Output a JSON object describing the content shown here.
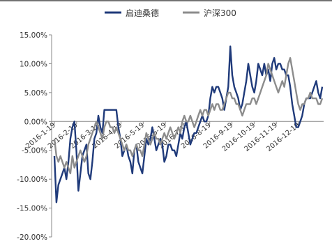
{
  "chart_data": {
    "type": "line",
    "title": "",
    "xlabel": "",
    "ylabel": "",
    "ylim": [
      -0.2,
      0.15
    ],
    "y_tick_labels": [
      "15.00%",
      "10.00%",
      "5.00%",
      "0.00%",
      "-5.00%",
      "-10.00%",
      "-15.00%",
      "-20.00%"
    ],
    "y_ticks": [
      0.15,
      0.1,
      0.05,
      0.0,
      -0.05,
      -0.1,
      -0.15,
      -0.2
    ],
    "x_tick_labels": [
      "2016-1-19",
      "2016-2-19",
      "2016-3-19",
      "2016-4-19",
      "2016-5-19",
      "2016-6-19",
      "2016-7-19",
      "2016-8-19",
      "2016-9-19",
      "2016-10-19",
      "2016-11-19",
      "2016-12-19"
    ],
    "grid": false,
    "legend_position": "top-center",
    "series": [
      {
        "name": "启迪桑德",
        "color": "#1f3a7a",
        "values": [
          -0.06,
          -0.14,
          -0.11,
          -0.1,
          -0.09,
          -0.08,
          -0.1,
          -0.07,
          -0.03,
          -0.01,
          0.0,
          -0.05,
          -0.12,
          -0.09,
          -0.06,
          -0.05,
          -0.04,
          -0.09,
          -0.1,
          -0.07,
          -0.03,
          -0.02,
          0.01,
          -0.01,
          -0.02,
          0.02,
          0.02,
          0.02,
          0.02,
          0.02,
          0.02,
          0.02,
          -0.01,
          -0.03,
          -0.06,
          -0.05,
          -0.04,
          -0.06,
          -0.07,
          -0.09,
          -0.05,
          -0.04,
          -0.07,
          -0.08,
          -0.09,
          -0.06,
          -0.03,
          -0.04,
          -0.03,
          -0.01,
          -0.03,
          -0.05,
          -0.04,
          -0.03,
          -0.04,
          -0.07,
          -0.06,
          -0.04,
          -0.04,
          -0.05,
          -0.05,
          -0.06,
          -0.04,
          -0.02,
          -0.03,
          -0.01,
          0.0,
          -0.02,
          -0.04,
          -0.03,
          -0.02,
          -0.02,
          -0.01,
          0.0,
          0.01,
          0.0,
          0.0,
          0.01,
          0.04,
          0.06,
          0.05,
          0.06,
          0.06,
          0.05,
          0.04,
          0.02,
          0.04,
          0.06,
          0.13,
          0.08,
          0.06,
          0.05,
          0.04,
          0.02,
          0.03,
          0.05,
          0.07,
          0.1,
          0.08,
          0.06,
          0.05,
          0.07,
          0.1,
          0.09,
          0.08,
          0.1,
          0.08,
          0.09,
          0.07,
          0.1,
          0.11,
          0.09,
          0.1,
          0.1,
          0.09,
          0.09,
          0.08,
          0.08,
          0.06,
          0.03,
          0.01,
          -0.01,
          -0.01,
          0.0,
          0.01,
          0.03,
          0.04,
          0.04,
          0.04,
          0.05,
          0.06,
          0.07,
          0.05,
          0.04,
          0.06
        ]
      },
      {
        "name": "沪深300",
        "color": "#8c8c8c",
        "values": [
          -0.03,
          -0.06,
          -0.07,
          -0.06,
          -0.07,
          -0.08,
          -0.07,
          -0.08,
          -0.09,
          -0.06,
          -0.08,
          -0.07,
          -0.06,
          -0.05,
          -0.06,
          -0.07,
          -0.06,
          -0.04,
          -0.03,
          -0.02,
          -0.01,
          0.0,
          -0.01,
          -0.02,
          -0.03,
          -0.01,
          0.0,
          0.0,
          -0.01,
          -0.01,
          -0.02,
          -0.01,
          -0.02,
          -0.03,
          -0.04,
          -0.05,
          -0.04,
          -0.05,
          -0.05,
          -0.06,
          -0.05,
          -0.04,
          -0.05,
          -0.05,
          -0.06,
          -0.04,
          -0.02,
          -0.03,
          -0.04,
          -0.03,
          -0.02,
          -0.03,
          -0.03,
          -0.04,
          -0.03,
          -0.02,
          -0.03,
          -0.02,
          -0.01,
          -0.02,
          -0.03,
          -0.02,
          -0.01,
          -0.02,
          0.0,
          0.01,
          0.0,
          0.0,
          0.01,
          0.0,
          -0.01,
          0.0,
          0.01,
          0.02,
          0.01,
          0.02,
          0.02,
          0.01,
          0.02,
          0.03,
          0.02,
          0.03,
          0.03,
          0.02,
          0.02,
          0.03,
          0.04,
          0.05,
          0.05,
          0.04,
          0.04,
          0.03,
          0.03,
          0.02,
          0.01,
          0.02,
          0.03,
          0.03,
          0.03,
          0.04,
          0.04,
          0.03,
          0.04,
          0.05,
          0.06,
          0.07,
          0.08,
          0.1,
          0.09,
          0.08,
          0.07,
          0.06,
          0.05,
          0.06,
          0.07,
          0.06,
          0.08,
          0.1,
          0.11,
          0.09,
          0.07,
          0.05,
          0.03,
          0.02,
          0.03,
          0.03,
          0.04,
          0.04,
          0.05,
          0.04,
          0.04,
          0.04,
          0.03,
          0.03,
          0.04
        ]
      }
    ]
  }
}
